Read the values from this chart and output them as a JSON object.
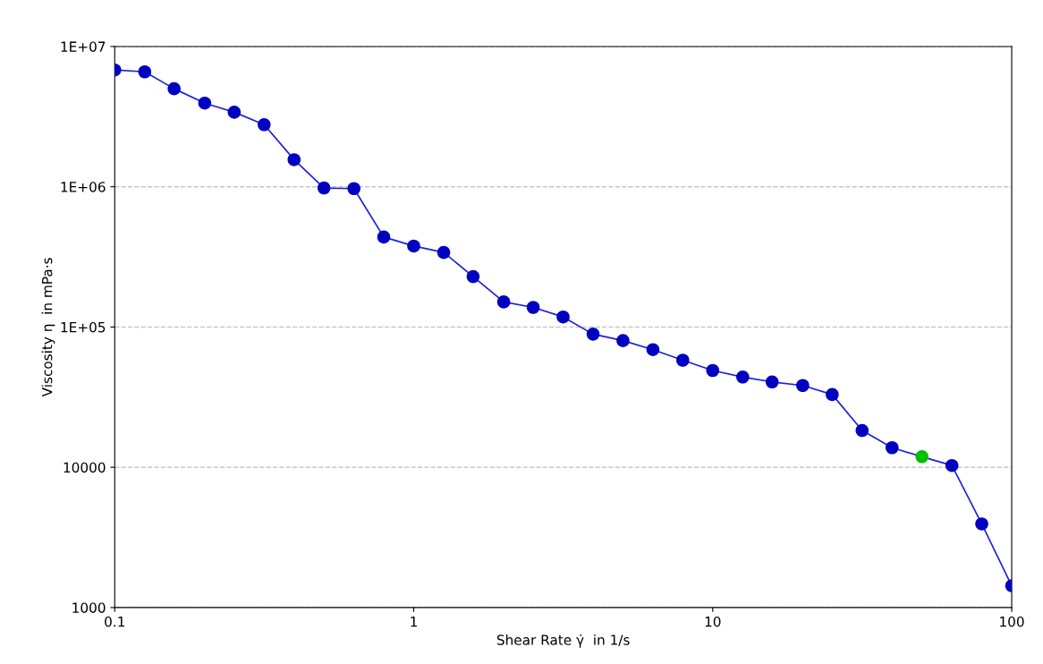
{
  "chart_data": {
    "type": "line",
    "xlabel": "Shear Rate γ̇  in 1/s",
    "ylabel": "Viscosity η  in mPa·s",
    "x": [
      0.1,
      0.126,
      0.158,
      0.2,
      0.251,
      0.316,
      0.398,
      0.501,
      0.631,
      0.794,
      1,
      1.26,
      1.58,
      2,
      2.51,
      3.16,
      3.98,
      5.01,
      6.31,
      7.94,
      10,
      12.6,
      15.8,
      20,
      25.1,
      31.6,
      39.8,
      50.1,
      63.1,
      79.4,
      100
    ],
    "series": [
      {
        "color": "#2020d8",
        "colors": [
          "#0000c0",
          "#0000c0",
          "#0000c0",
          "#0000c0",
          "#0000c0",
          "#0000c0",
          "#0000c0",
          "#0000c0",
          "#0000c0",
          "#0000c0",
          "#0000c0",
          "#0000c0",
          "#0000c0",
          "#0000c0",
          "#0000c0",
          "#0000c0",
          "#0000c0",
          "#0000c0",
          "#0000c0",
          "#0000c0",
          "#0000c0",
          "#0000c0",
          "#0000c0",
          "#0000c0",
          "#0000c0",
          "#0000c0",
          "#0000c0",
          "#00c000",
          "#0000c0",
          "#0000c0",
          "#0000c0"
        ],
        "values": [
          6800000,
          6600000,
          5000000,
          3950000,
          3400000,
          2770000,
          1560000,
          980000,
          970000,
          438000,
          378000,
          340000,
          229000,
          151000,
          138000,
          118000,
          89000,
          80000,
          69000,
          58000,
          49000,
          44000,
          40600,
          38300,
          33000,
          18300,
          13800,
          11900,
          10300,
          3950,
          1430
        ]
      }
    ],
    "log": "xy",
    "xlim": [
      0.1,
      100
    ],
    "ylim": [
      1000,
      10000000
    ],
    "xticks": [
      0.1,
      1,
      10,
      100
    ],
    "yticks": [
      1000,
      10000,
      {
        "value": 100000,
        "label": "1E+05"
      },
      {
        "value": 1000000,
        "label": "1E+06"
      },
      {
        "value": 10000000,
        "label": "1E+07"
      }
    ],
    "grid": "y",
    "marker": "circle",
    "line_style": "solid",
    "legend": false
  }
}
